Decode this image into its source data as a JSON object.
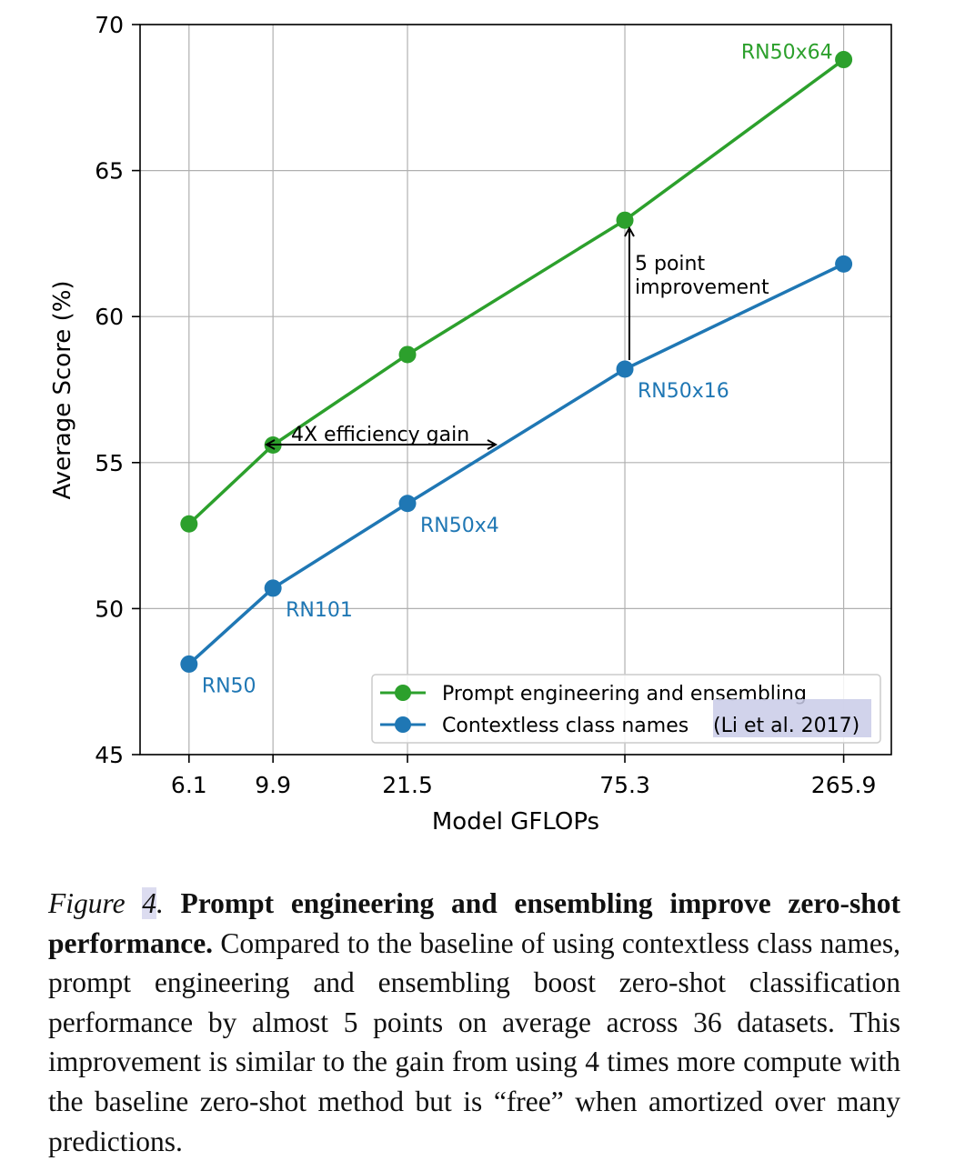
{
  "chart_data": {
    "type": "line",
    "xlabel": "Model GFLOPs",
    "ylabel": "Average Score (%)",
    "ylim": [
      45,
      70
    ],
    "yticks": [
      45,
      50,
      55,
      60,
      65,
      70
    ],
    "categories": [
      "6.1",
      "9.9",
      "21.5",
      "75.3",
      "265.9"
    ],
    "x": [
      6.1,
      9.9,
      21.5,
      75.3,
      265.9
    ],
    "xscale": "log",
    "grid": true,
    "legend_position": "bottom-right",
    "series": [
      {
        "name": "Prompt engineering and ensembling",
        "color": "#2ca02c",
        "values": [
          52.9,
          55.6,
          58.7,
          63.3,
          68.8
        ]
      },
      {
        "name": "Contextless class names",
        "name_citation": "(Li et al. 2017)",
        "color": "#1f77b4",
        "values": [
          48.1,
          50.7,
          53.6,
          58.2,
          61.8
        ]
      }
    ],
    "point_labels": [
      {
        "text": "RN50",
        "series": 1,
        "index": 0
      },
      {
        "text": "RN101",
        "series": 1,
        "index": 1
      },
      {
        "text": "RN50x4",
        "series": 1,
        "index": 2
      },
      {
        "text": "RN50x16",
        "series": 1,
        "index": 3
      },
      {
        "text": "RN50x64",
        "series": 0,
        "index": 4
      }
    ],
    "annotations": {
      "efficiency": "4X efficiency gain",
      "improvement_line1": "5 point",
      "improvement_line2": "improvement"
    }
  },
  "caption": {
    "figure_word": "Figure",
    "figure_number": "4",
    "figure_period": ".",
    "title": "Prompt engineering and ensembling improve zero-shot performance.",
    "body": "Compared to the baseline of using contextless class names, prompt engineering and ensembling boost zero-shot classification performance by almost 5 points on average across 36 datasets. This improvement is similar to the gain from using 4 times more compute with the baseline zero-shot method but is “free” when amortized over many predictions."
  }
}
